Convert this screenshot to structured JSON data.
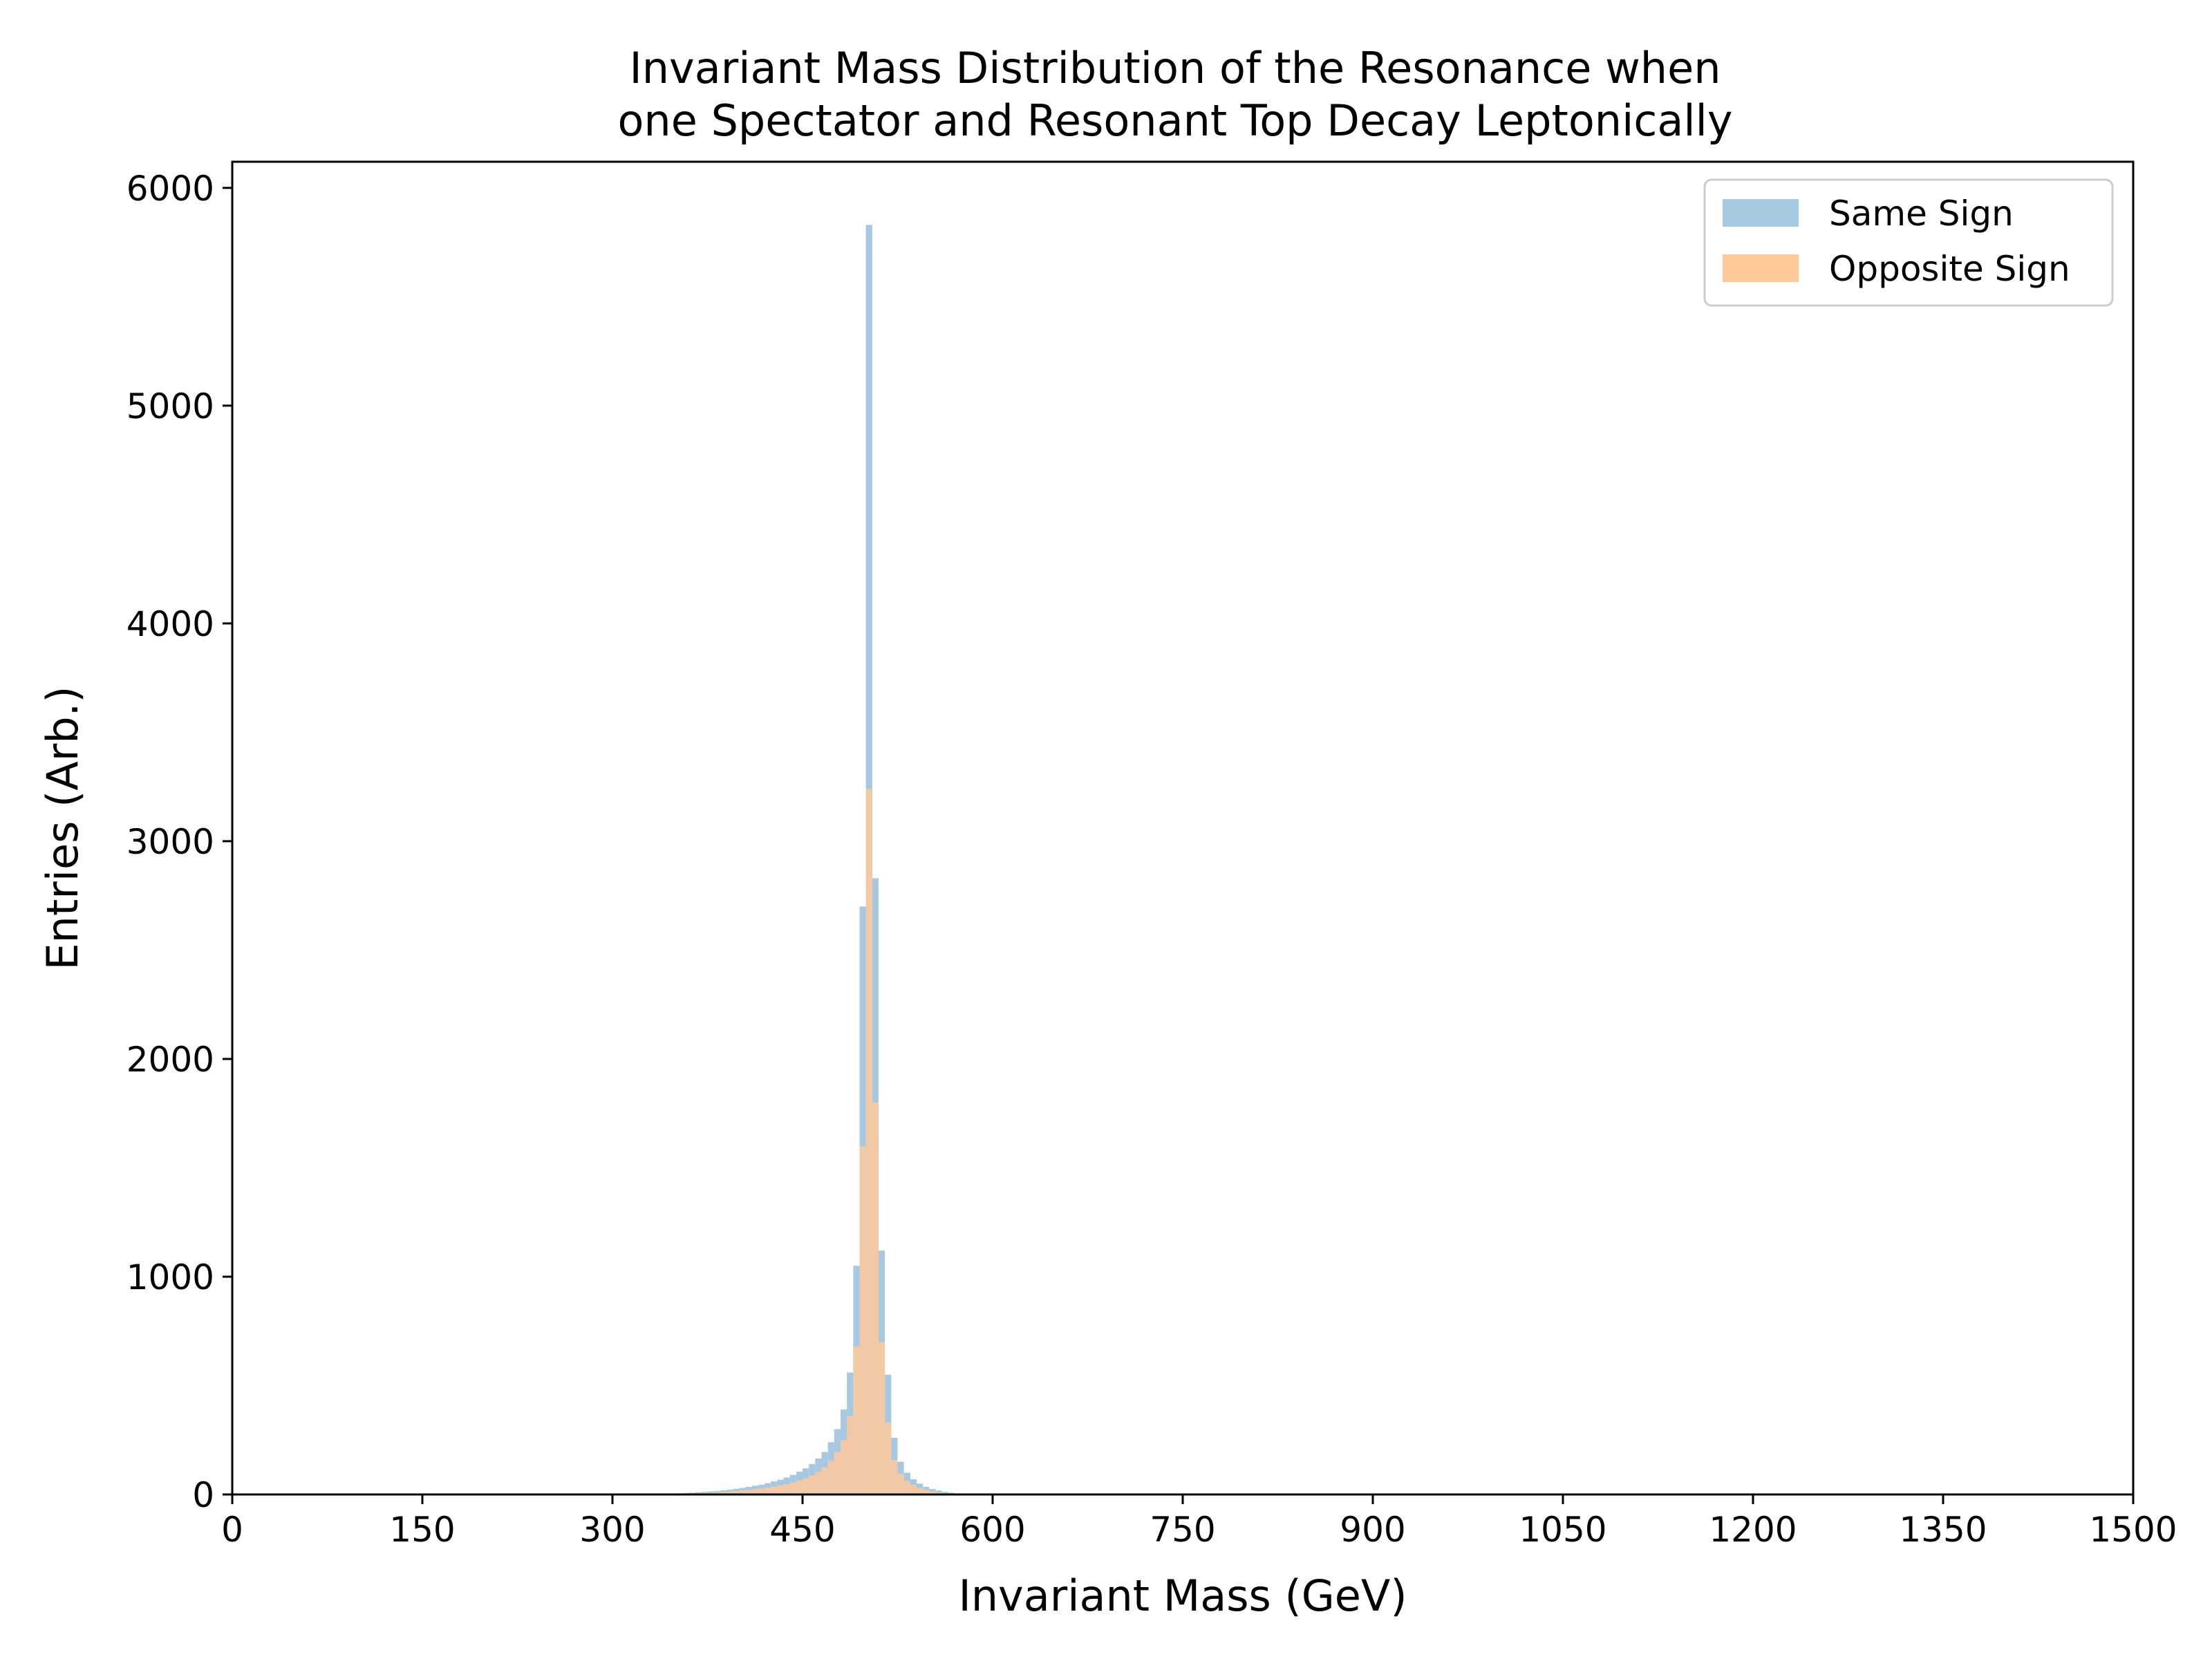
{
  "chart_data": {
    "type": "histogram",
    "title_lines": [
      "Invariant Mass Distribution of the Resonance when",
      "one Spectator and Resonant Top Decay Leptonically"
    ],
    "xlabel": "Invariant Mass (GeV)",
    "ylabel": "Entries (Arb.)",
    "xlim": [
      0,
      1500
    ],
    "ylim": [
      0,
      6120
    ],
    "xticks": [
      "0",
      "150",
      "300",
      "450",
      "600",
      "750",
      "900",
      "1050",
      "1200",
      "1350",
      "1500"
    ],
    "yticks": [
      "0",
      "1000",
      "2000",
      "3000",
      "4000",
      "5000",
      "6000"
    ],
    "grid": false,
    "legend_position": "top-right",
    "bin_width": 5,
    "series": [
      {
        "name": "Same Sign",
        "color": "#a6c8e0",
        "bins": [
          [
            350,
            5
          ],
          [
            355,
            6
          ],
          [
            360,
            8
          ],
          [
            365,
            10
          ],
          [
            370,
            12
          ],
          [
            375,
            14
          ],
          [
            380,
            16
          ],
          [
            385,
            19
          ],
          [
            390,
            22
          ],
          [
            395,
            26
          ],
          [
            400,
            30
          ],
          [
            405,
            35
          ],
          [
            410,
            40
          ],
          [
            415,
            45
          ],
          [
            420,
            52
          ],
          [
            425,
            60
          ],
          [
            430,
            68
          ],
          [
            435,
            78
          ],
          [
            440,
            90
          ],
          [
            445,
            105
          ],
          [
            450,
            120
          ],
          [
            455,
            140
          ],
          [
            460,
            165
          ],
          [
            465,
            195
          ],
          [
            470,
            240
          ],
          [
            475,
            300
          ],
          [
            480,
            390
          ],
          [
            485,
            560
          ],
          [
            490,
            1050
          ],
          [
            495,
            2700
          ],
          [
            500,
            5830
          ],
          [
            505,
            2830
          ],
          [
            510,
            1120
          ],
          [
            515,
            550
          ],
          [
            520,
            260
          ],
          [
            525,
            150
          ],
          [
            530,
            100
          ],
          [
            535,
            70
          ],
          [
            540,
            50
          ],
          [
            545,
            35
          ],
          [
            550,
            25
          ],
          [
            555,
            18
          ],
          [
            560,
            12
          ],
          [
            565,
            8
          ],
          [
            570,
            5
          ],
          [
            575,
            3
          ]
        ]
      },
      {
        "name": "Opposite Sign",
        "color": "#ffc999",
        "bins": [
          [
            350,
            3
          ],
          [
            355,
            4
          ],
          [
            360,
            5
          ],
          [
            365,
            6
          ],
          [
            370,
            7
          ],
          [
            375,
            8
          ],
          [
            380,
            10
          ],
          [
            385,
            12
          ],
          [
            390,
            14
          ],
          [
            395,
            16
          ],
          [
            400,
            19
          ],
          [
            405,
            22
          ],
          [
            410,
            25
          ],
          [
            415,
            28
          ],
          [
            420,
            32
          ],
          [
            425,
            37
          ],
          [
            430,
            42
          ],
          [
            435,
            48
          ],
          [
            440,
            55
          ],
          [
            445,
            65
          ],
          [
            450,
            75
          ],
          [
            455,
            88
          ],
          [
            460,
            105
          ],
          [
            465,
            125
          ],
          [
            470,
            155
          ],
          [
            475,
            195
          ],
          [
            480,
            250
          ],
          [
            485,
            360
          ],
          [
            490,
            680
          ],
          [
            495,
            1600
          ],
          [
            500,
            3240
          ],
          [
            505,
            1800
          ],
          [
            510,
            700
          ],
          [
            515,
            330
          ],
          [
            520,
            160
          ],
          [
            525,
            95
          ],
          [
            530,
            62
          ],
          [
            535,
            44
          ],
          [
            540,
            30
          ],
          [
            545,
            21
          ],
          [
            550,
            15
          ],
          [
            555,
            10
          ],
          [
            560,
            7
          ],
          [
            565,
            5
          ],
          [
            570,
            3
          ],
          [
            575,
            2
          ]
        ]
      }
    ]
  }
}
